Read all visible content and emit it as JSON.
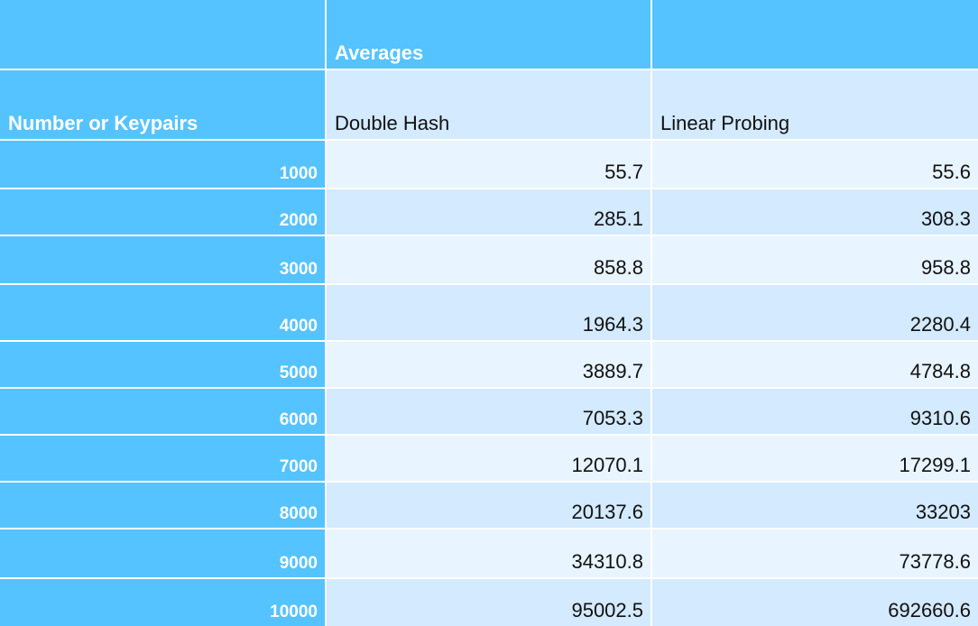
{
  "table": {
    "header_row_1": [
      "",
      "Averages",
      ""
    ],
    "header_row_2": [
      "Number or Keypairs",
      "Double Hash",
      "Linear Probing"
    ],
    "rows": [
      [
        "1000",
        "55.7",
        "55.6"
      ],
      [
        "2000",
        "285.1",
        "308.3"
      ],
      [
        "3000",
        "858.8",
        "958.8"
      ],
      [
        "4000",
        "1964.3",
        "2280.4"
      ],
      [
        "5000",
        "3889.7",
        "4784.8"
      ],
      [
        "6000",
        "7053.3",
        "9310.6"
      ],
      [
        "7000",
        "12070.1",
        "17299.1"
      ],
      [
        "8000",
        "20137.6",
        "33203"
      ],
      [
        "9000",
        "34310.8",
        "73778.6"
      ],
      [
        "10000",
        "95002.5",
        "692660.6"
      ]
    ]
  },
  "colors": {
    "header_blue": "#55c3ff",
    "row_light": "#e8f4ff",
    "row_mid": "#d3eaff",
    "grid_line": "#ffffff"
  }
}
